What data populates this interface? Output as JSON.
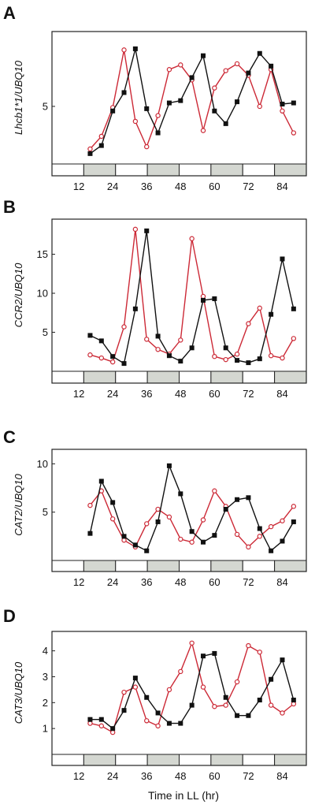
{
  "figure": {
    "xlabel": "Time in LL (hr)",
    "colors": {
      "black_series": "#111111",
      "red_series": "#cc2936",
      "subjective_night": "#d4d7d1",
      "frame": "#222222"
    }
  },
  "chart_data": [
    {
      "type": "line",
      "panel_letter": "A",
      "ylabel": "Lhcb1*1/UBQ10",
      "xlim": [
        2.5,
        92.5
      ],
      "ylim": [
        0,
        11.5
      ],
      "xticks": [
        "12",
        "24",
        "36",
        "48",
        "60",
        "72",
        "84"
      ],
      "yticks": [
        "5"
      ],
      "light_bar": [
        "light",
        "dark",
        "light",
        "dark",
        "light",
        "dark",
        "light",
        "dark"
      ],
      "series": [
        {
          "color": "black",
          "marker": "square-filled",
          "x": [
            16,
            20,
            24,
            28,
            32,
            36,
            40,
            44,
            48,
            52,
            56,
            60,
            64,
            68,
            72,
            76,
            80,
            84,
            88
          ],
          "y": [
            0.9,
            1.6,
            4.6,
            6.2,
            10.0,
            4.8,
            2.7,
            5.3,
            5.5,
            7.5,
            9.4,
            4.6,
            3.5,
            5.4,
            7.9,
            9.6,
            8.5,
            5.2,
            5.3
          ]
        },
        {
          "color": "red",
          "marker": "circle-open",
          "x": [
            16,
            20,
            24,
            28,
            32,
            36,
            40,
            44,
            48,
            52,
            56,
            60,
            64,
            68,
            72,
            76,
            80,
            84,
            88
          ],
          "y": [
            1.3,
            2.4,
            4.9,
            9.9,
            3.7,
            1.5,
            4.2,
            8.2,
            8.6,
            7.3,
            2.9,
            6.6,
            8.1,
            8.7,
            7.7,
            5.0,
            8.2,
            4.6,
            2.7
          ]
        }
      ]
    },
    {
      "type": "line",
      "panel_letter": "B",
      "ylabel": "CCR2/UBQ10",
      "xlim": [
        2.5,
        92.5
      ],
      "ylim": [
        0,
        19.5
      ],
      "xticks": [
        "12",
        "24",
        "36",
        "48",
        "60",
        "72",
        "84"
      ],
      "yticks": [
        "5",
        "10",
        "15"
      ],
      "light_bar": [
        "light",
        "dark",
        "light",
        "dark",
        "light",
        "dark",
        "light",
        "dark"
      ],
      "series": [
        {
          "color": "black",
          "marker": "square-filled",
          "x": [
            16,
            20,
            24,
            28,
            32,
            36,
            40,
            44,
            48,
            52,
            56,
            60,
            64,
            68,
            72,
            76,
            80,
            84,
            88
          ],
          "y": [
            4.6,
            3.9,
            1.9,
            1.0,
            8.0,
            18.0,
            4.5,
            2.0,
            1.3,
            3.0,
            9.1,
            9.3,
            3.0,
            1.4,
            1.1,
            1.6,
            7.3,
            14.4,
            8.0
          ]
        },
        {
          "color": "red",
          "marker": "circle-open",
          "x": [
            16,
            20,
            24,
            28,
            32,
            36,
            40,
            44,
            48,
            52,
            56,
            60,
            64,
            68,
            72,
            76,
            80,
            84,
            88
          ],
          "y": [
            2.1,
            1.7,
            1.2,
            5.7,
            18.2,
            4.1,
            2.8,
            2.2,
            4.0,
            17.0,
            9.6,
            1.9,
            1.5,
            2.2,
            6.1,
            8.1,
            2.0,
            1.7,
            4.2
          ]
        }
      ]
    },
    {
      "type": "line",
      "panel_letter": "C",
      "ylabel": "CAT2/UBQ10",
      "xlim": [
        2.5,
        92.5
      ],
      "ylim": [
        0,
        11.5
      ],
      "xticks": [
        "12",
        "24",
        "36",
        "48",
        "60",
        "72",
        "84"
      ],
      "yticks": [
        "5",
        "10"
      ],
      "light_bar": [
        "light",
        "dark",
        "light",
        "dark",
        "light",
        "dark",
        "light",
        "dark"
      ],
      "series": [
        {
          "color": "black",
          "marker": "square-filled",
          "x": [
            16,
            20,
            24,
            28,
            32,
            36,
            40,
            44,
            48,
            52,
            56,
            60,
            64,
            68,
            72,
            76,
            80,
            84,
            88
          ],
          "y": [
            2.8,
            8.2,
            6.0,
            2.5,
            1.6,
            1.0,
            4.0,
            9.8,
            6.9,
            3.0,
            1.9,
            2.6,
            5.3,
            6.3,
            6.5,
            3.3,
            1.0,
            2.0,
            4.0
          ]
        },
        {
          "color": "red",
          "marker": "circle-open",
          "x": [
            16,
            20,
            24,
            28,
            32,
            36,
            40,
            44,
            48,
            52,
            56,
            60,
            64,
            68,
            72,
            76,
            80,
            84,
            88
          ],
          "y": [
            5.7,
            7.2,
            4.3,
            2.1,
            1.4,
            3.8,
            5.3,
            4.5,
            2.2,
            1.9,
            4.2,
            7.2,
            5.6,
            2.7,
            1.4,
            2.5,
            3.5,
            4.1,
            5.6
          ]
        }
      ]
    },
    {
      "type": "line",
      "panel_letter": "D",
      "ylabel": "CAT3/UBQ10",
      "xlim": [
        2.5,
        92.5
      ],
      "ylim": [
        0,
        4.75
      ],
      "xticks": [
        "12",
        "24",
        "36",
        "48",
        "60",
        "72",
        "84"
      ],
      "yticks": [
        "1",
        "2",
        "3",
        "4"
      ],
      "light_bar": [
        "light",
        "dark",
        "light",
        "dark",
        "light",
        "dark",
        "light",
        "dark"
      ],
      "series": [
        {
          "color": "black",
          "marker": "square-filled",
          "x": [
            16,
            20,
            24,
            28,
            32,
            36,
            40,
            44,
            48,
            52,
            56,
            60,
            64,
            68,
            72,
            76,
            80,
            84,
            88
          ],
          "y": [
            1.35,
            1.35,
            1.0,
            1.7,
            2.95,
            2.2,
            1.6,
            1.2,
            1.2,
            1.9,
            3.8,
            3.9,
            2.2,
            1.5,
            1.5,
            2.1,
            2.9,
            3.65,
            2.1
          ]
        },
        {
          "color": "red",
          "marker": "circle-open",
          "x": [
            16,
            20,
            24,
            28,
            32,
            36,
            40,
            44,
            48,
            52,
            56,
            60,
            64,
            68,
            72,
            76,
            80,
            84,
            88
          ],
          "y": [
            1.2,
            1.1,
            0.85,
            2.4,
            2.6,
            1.3,
            1.1,
            2.5,
            3.2,
            4.3,
            2.6,
            1.85,
            1.9,
            2.8,
            4.2,
            3.95,
            1.9,
            1.6,
            1.95
          ]
        }
      ]
    }
  ]
}
